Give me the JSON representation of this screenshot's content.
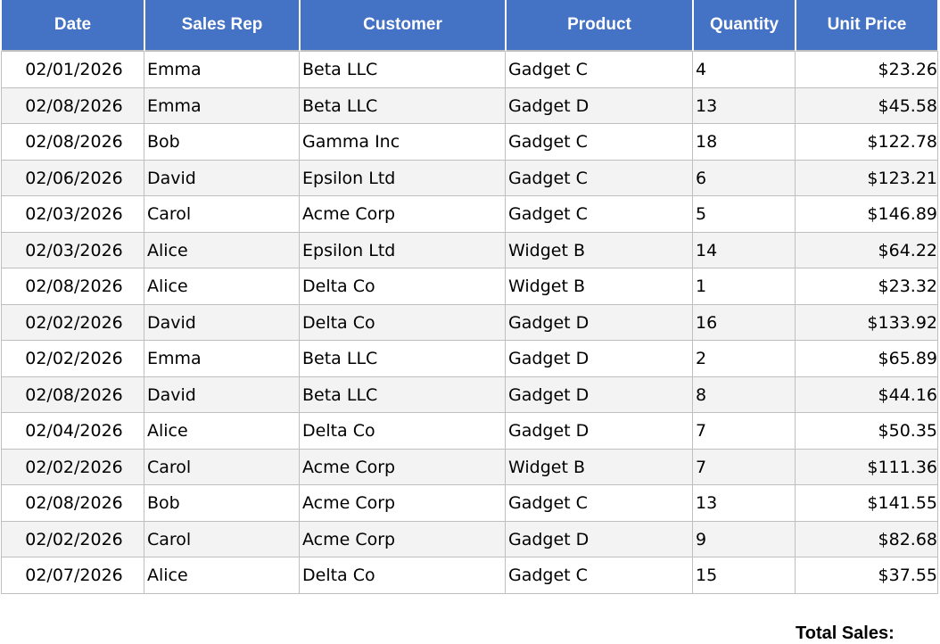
{
  "table": {
    "columns": [
      {
        "label": "Date",
        "align": "center"
      },
      {
        "label": "Sales Rep",
        "align": "left"
      },
      {
        "label": "Customer",
        "align": "left"
      },
      {
        "label": "Product",
        "align": "left"
      },
      {
        "label": "Quantity",
        "align": "left"
      },
      {
        "label": "Unit Price",
        "align": "right"
      }
    ],
    "rows": [
      [
        "02/01/2026",
        "Emma",
        "Beta LLC",
        "Gadget C",
        "4",
        "$23.26"
      ],
      [
        "02/08/2026",
        "Emma",
        "Beta LLC",
        "Gadget D",
        "13",
        "$45.58"
      ],
      [
        "02/08/2026",
        "Bob",
        "Gamma Inc",
        "Gadget C",
        "18",
        "$122.78"
      ],
      [
        "02/06/2026",
        "David",
        "Epsilon Ltd",
        "Gadget C",
        "6",
        "$123.21"
      ],
      [
        "02/03/2026",
        "Carol",
        "Acme Corp",
        "Gadget C",
        "5",
        "$146.89"
      ],
      [
        "02/03/2026",
        "Alice",
        "Epsilon Ltd",
        "Widget B",
        "14",
        "$64.22"
      ],
      [
        "02/08/2026",
        "Alice",
        "Delta Co",
        "Widget B",
        "1",
        "$23.32"
      ],
      [
        "02/02/2026",
        "David",
        "Delta Co",
        "Gadget D",
        "16",
        "$133.92"
      ],
      [
        "02/02/2026",
        "Emma",
        "Beta LLC",
        "Gadget D",
        "2",
        "$65.89"
      ],
      [
        "02/08/2026",
        "David",
        "Beta LLC",
        "Gadget D",
        "8",
        "$44.16"
      ],
      [
        "02/04/2026",
        "Alice",
        "Delta Co",
        "Gadget D",
        "7",
        "$50.35"
      ],
      [
        "02/02/2026",
        "Carol",
        "Acme Corp",
        "Widget B",
        "7",
        "$111.36"
      ],
      [
        "02/08/2026",
        "Bob",
        "Acme Corp",
        "Gadget C",
        "13",
        "$141.55"
      ],
      [
        "02/02/2026",
        "Carol",
        "Acme Corp",
        "Gadget D",
        "9",
        "$82.68"
      ],
      [
        "02/07/2026",
        "Alice",
        "Delta Co",
        "Gadget C",
        "15",
        "$37.55"
      ]
    ]
  },
  "footer": {
    "total_label": "Total Sales:"
  },
  "colors": {
    "header_bg": "#4472C4",
    "header_text": "#FFFFFF",
    "row_bg": "#FFFFFF",
    "row_alt_bg": "#F3F3F3",
    "border": "#BFBFBF",
    "text": "#000000"
  }
}
